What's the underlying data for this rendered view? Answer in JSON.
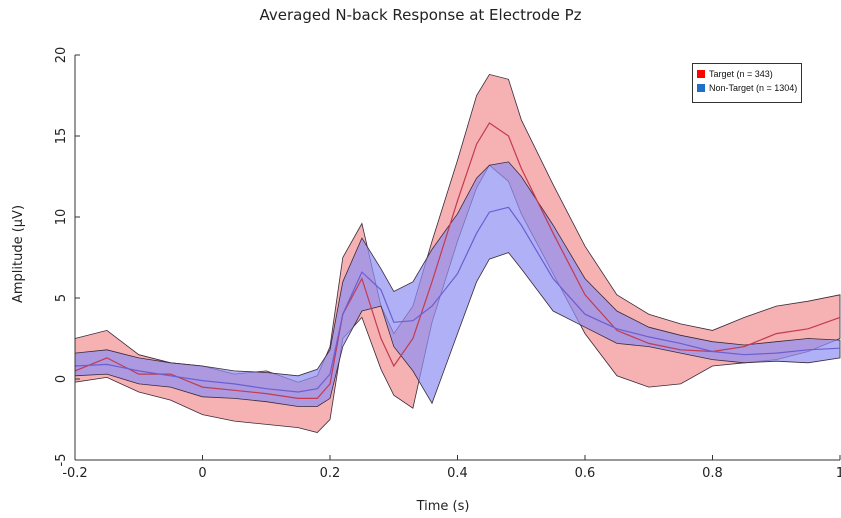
{
  "chart_data": {
    "type": "line",
    "title": "Averaged N-back Response at Electrode Pz",
    "xlabel": "Time (s)",
    "ylabel": "Amplitude (μV)",
    "xlim": [
      -0.2,
      1.0
    ],
    "ylim": [
      -5,
      20
    ],
    "xticks": [
      -0.2,
      0,
      0.2,
      0.4,
      0.6,
      0.8,
      1
    ],
    "xtick_labels": [
      "-0.2",
      "0",
      "0.2",
      "0.4",
      "0.6",
      "0.8",
      "1"
    ],
    "yticks": [
      -5,
      0,
      5,
      10,
      15,
      20
    ],
    "ytick_labels": [
      "-5",
      "0",
      "5",
      "10",
      "15",
      "20"
    ],
    "legend_position": "top-right",
    "series": [
      {
        "name": "Target (n = 343)",
        "color": "#ff0000",
        "fill": "#f4a3a6",
        "line": "#c43a4f",
        "x": [
          -0.2,
          -0.15,
          -0.1,
          -0.05,
          0.0,
          0.05,
          0.1,
          0.15,
          0.18,
          0.2,
          0.22,
          0.25,
          0.28,
          0.3,
          0.33,
          0.36,
          0.4,
          0.43,
          0.45,
          0.48,
          0.5,
          0.55,
          0.6,
          0.65,
          0.7,
          0.75,
          0.8,
          0.85,
          0.9,
          0.95,
          1.0
        ],
        "mean": [
          0.5,
          1.3,
          0.3,
          0.3,
          -0.5,
          -0.7,
          -0.9,
          -1.2,
          -1.2,
          -0.3,
          4.0,
          6.2,
          2.5,
          0.8,
          2.5,
          6.0,
          11.0,
          14.5,
          15.8,
          15.0,
          13.0,
          9.0,
          5.2,
          3.0,
          2.2,
          1.8,
          1.7,
          2.0,
          2.8,
          3.1,
          3.8
        ],
        "upper": [
          2.5,
          3.0,
          1.5,
          1.0,
          0.8,
          0.3,
          0.5,
          -0.2,
          0.2,
          2.0,
          7.5,
          9.6,
          4.5,
          2.8,
          4.5,
          8.5,
          13.5,
          17.5,
          18.8,
          18.5,
          16.0,
          12.0,
          8.2,
          5.2,
          4.0,
          3.4,
          3.0,
          3.8,
          4.5,
          4.8,
          5.2
        ],
        "lower": [
          -0.2,
          0.1,
          -0.8,
          -1.3,
          -2.2,
          -2.6,
          -2.8,
          -3.0,
          -3.3,
          -2.5,
          2.5,
          3.8,
          0.6,
          -1.0,
          -1.8,
          3.5,
          8.5,
          11.8,
          13.2,
          12.2,
          10.2,
          6.5,
          2.8,
          0.2,
          -0.5,
          -0.3,
          0.8,
          1.0,
          1.2,
          1.7,
          2.5
        ]
      },
      {
        "name": "Non-Target (n = 1304)",
        "color": "#1f6fc6",
        "fill": "#8f8ff4",
        "line": "#6b5ed1",
        "x": [
          -0.2,
          -0.15,
          -0.1,
          -0.05,
          0.0,
          0.05,
          0.1,
          0.15,
          0.18,
          0.2,
          0.22,
          0.25,
          0.28,
          0.3,
          0.33,
          0.36,
          0.4,
          0.43,
          0.45,
          0.48,
          0.5,
          0.55,
          0.6,
          0.65,
          0.7,
          0.75,
          0.8,
          0.85,
          0.9,
          0.95,
          1.0
        ],
        "mean": [
          0.8,
          0.9,
          0.5,
          0.2,
          -0.1,
          -0.3,
          -0.6,
          -0.8,
          -0.6,
          0.3,
          4.0,
          6.6,
          5.5,
          3.5,
          3.6,
          4.5,
          6.5,
          9.0,
          10.3,
          10.6,
          9.5,
          6.2,
          4.0,
          3.1,
          2.6,
          2.2,
          1.7,
          1.5,
          1.6,
          1.8,
          1.9
        ],
        "upper": [
          1.6,
          1.8,
          1.3,
          1.0,
          0.8,
          0.5,
          0.4,
          0.2,
          0.6,
          1.8,
          6.0,
          8.7,
          6.8,
          5.4,
          6.0,
          8.0,
          10.2,
          12.4,
          13.2,
          13.4,
          12.5,
          9.5,
          6.2,
          4.2,
          3.2,
          2.7,
          2.3,
          2.1,
          2.3,
          2.5,
          2.4
        ],
        "lower": [
          0.2,
          0.3,
          -0.3,
          -0.5,
          -1.1,
          -1.2,
          -1.4,
          -1.7,
          -1.7,
          -1.2,
          2.0,
          4.2,
          4.5,
          2.0,
          0.5,
          -1.5,
          2.8,
          6.0,
          7.4,
          7.8,
          6.8,
          4.2,
          3.2,
          2.2,
          2.0,
          1.6,
          1.2,
          1.0,
          1.1,
          1.0,
          1.3
        ]
      }
    ]
  }
}
